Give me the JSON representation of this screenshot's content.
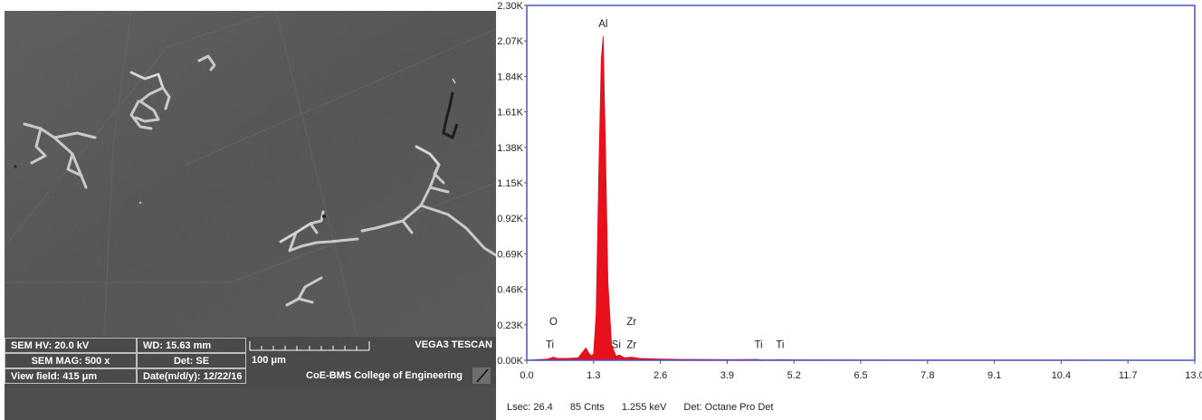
{
  "sem": {
    "hv": "SEM HV: 20.0 kV",
    "wd": "WD: 15.63 mm",
    "brand": "VEGA3 TESCAN",
    "mag": "SEM MAG: 500 x",
    "det": "Det: SE",
    "scale": "100 μm",
    "view_field": "View field: 415 μm",
    "date": "Date(m/d/y): 12/22/16",
    "institution": "CoE-BMS College of Engineering"
  },
  "eds_footer": {
    "lsec": "Lsec: 26.4",
    "counts": "85 Cnts",
    "kev": "1.255 keV",
    "det": "Det: Octane Pro Det"
  },
  "chart_data": {
    "type": "area",
    "title": "",
    "xlabel": "",
    "ylabel": "",
    "xlim": [
      0.0,
      13.0
    ],
    "ylim": [
      0.0,
      2.3
    ],
    "y_unit": "K",
    "x_ticks": [
      "0.0",
      "1.3",
      "2.6",
      "3.9",
      "5.2",
      "6.5",
      "7.8",
      "9.1",
      "10.4",
      "11.7",
      "13.0"
    ],
    "y_ticks": [
      "0.00K",
      "0.23K",
      "0.46K",
      "0.69K",
      "0.92K",
      "1.15K",
      "1.38K",
      "1.61K",
      "1.84K",
      "2.07K",
      "2.30K"
    ],
    "color": "#e8101a",
    "frame_color": "#4a50c8",
    "series": [
      {
        "x": [
          0.0,
          0.2,
          0.4,
          0.52,
          0.6,
          0.8,
          1.0,
          1.15,
          1.2,
          1.25,
          1.3,
          1.35,
          1.4,
          1.45,
          1.486,
          1.53,
          1.58,
          1.65,
          1.74,
          1.8,
          1.9,
          2.04,
          2.2,
          2.6,
          3.0,
          4.0,
          4.5,
          4.51,
          4.7,
          4.93,
          5.2,
          6.5,
          8.0,
          10.0,
          13.0
        ],
        "y": [
          0.0,
          0.004,
          0.008,
          0.02,
          0.012,
          0.012,
          0.016,
          0.08,
          0.05,
          0.03,
          0.04,
          0.3,
          1.2,
          1.95,
          2.1,
          1.4,
          0.5,
          0.1,
          0.025,
          0.035,
          0.016,
          0.02,
          0.012,
          0.008,
          0.006,
          0.004,
          0.006,
          0.004,
          0.002,
          0.004,
          0.003,
          0.002,
          0.001,
          0.001,
          0.0
        ]
      }
    ],
    "annotations": [
      {
        "label": "Al",
        "x": 1.486,
        "y": 2.16
      },
      {
        "label": "O",
        "x": 0.52,
        "y": 0.23
      },
      {
        "label": "Ti",
        "x": 0.45,
        "y": 0.08
      },
      {
        "label": "Si",
        "x": 1.74,
        "y": 0.08
      },
      {
        "label": "Zr",
        "x": 2.04,
        "y": 0.23
      },
      {
        "label": "Zr",
        "x": 2.04,
        "y": 0.08
      },
      {
        "label": "Ti",
        "x": 4.51,
        "y": 0.08
      },
      {
        "label": "Ti",
        "x": 4.93,
        "y": 0.08
      }
    ]
  }
}
